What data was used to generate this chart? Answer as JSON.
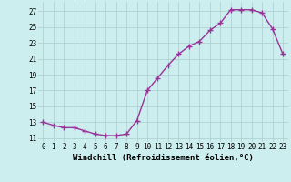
{
  "x": [
    0,
    1,
    2,
    3,
    4,
    5,
    6,
    7,
    8,
    9,
    10,
    11,
    12,
    13,
    14,
    15,
    16,
    17,
    18,
    19,
    20,
    21,
    22,
    23
  ],
  "y": [
    13,
    12.6,
    12.3,
    12.3,
    11.9,
    11.5,
    11.3,
    11.3,
    11.5,
    13.2,
    17.0,
    18.6,
    20.2,
    21.6,
    22.6,
    23.2,
    24.6,
    25.5,
    27.2,
    27.2,
    27.2,
    26.8,
    24.8,
    21.6
  ],
  "line_color": "#993399",
  "marker": "+",
  "markersize": 4,
  "linewidth": 1.0,
  "bg_color": "#cceeee",
  "grid_color": "#aacccc",
  "xlabel": "Windchill (Refroidissement éolien,°C)",
  "xlabel_fontsize": 6.5,
  "ylabel_ticks": [
    11,
    13,
    15,
    17,
    19,
    21,
    23,
    25,
    27
  ],
  "xlim": [
    -0.5,
    23.5
  ],
  "ylim": [
    10.5,
    28.2
  ],
  "xtick_labels": [
    "0",
    "1",
    "2",
    "3",
    "4",
    "5",
    "6",
    "7",
    "8",
    "9",
    "10",
    "11",
    "12",
    "13",
    "14",
    "15",
    "16",
    "17",
    "18",
    "19",
    "20",
    "21",
    "22",
    "23"
  ],
  "tick_fontsize": 5.5
}
